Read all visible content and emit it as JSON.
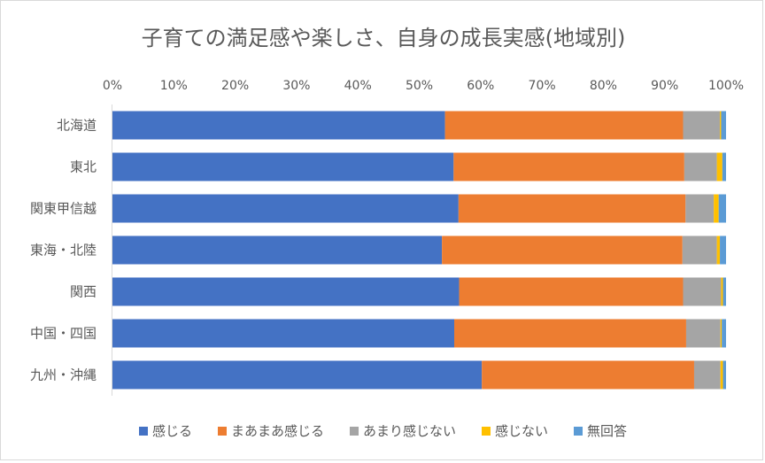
{
  "chart_data": {
    "type": "bar",
    "orientation": "horizontal",
    "stacked": "percent",
    "title": "子育ての満足感や楽しさ、自身の成長実感(地域別)",
    "categories": [
      "北海道",
      "東北",
      "関東甲信越",
      "東海・北陸",
      "関西",
      "中国・四国",
      "九州・沖縄"
    ],
    "x_tick_labels": [
      "0%",
      "10%",
      "20%",
      "30%",
      "40%",
      "50%",
      "60%",
      "70%",
      "80%",
      "90%",
      "100%"
    ],
    "xlim": [
      0,
      100
    ],
    "x_axis_position": "top",
    "grid": false,
    "legend_position": "bottom",
    "series": [
      {
        "name": "感じる",
        "color": "#4472C4",
        "values": [
          54.2,
          55.6,
          56.4,
          53.7,
          56.5,
          55.7,
          60.2
        ]
      },
      {
        "name": "まあまあ感じる",
        "color": "#ED7D31",
        "values": [
          38.8,
          37.6,
          37.0,
          39.2,
          36.5,
          37.8,
          34.6
        ]
      },
      {
        "name": "あまり感じない",
        "color": "#A5A5A5",
        "values": [
          6.0,
          5.3,
          4.6,
          5.6,
          6.2,
          5.6,
          4.3
        ]
      },
      {
        "name": "感じない",
        "color": "#FFC000",
        "values": [
          0.2,
          0.9,
          0.8,
          0.5,
          0.3,
          0.2,
          0.4
        ]
      },
      {
        "name": "無回答",
        "color": "#5B9BD5",
        "values": [
          0.8,
          0.6,
          1.2,
          1.0,
          0.5,
          0.7,
          0.5
        ]
      }
    ]
  }
}
